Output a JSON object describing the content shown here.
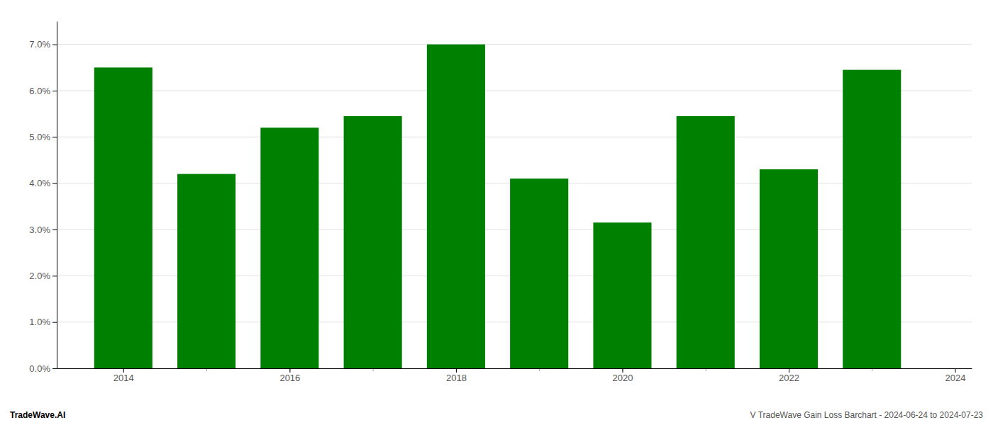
{
  "chart_data": {
    "type": "bar",
    "title": "V TradeWave Gain Loss Barchart - 2024-06-24 to 2024-07-23",
    "annotations": [
      "TradeWave.AI"
    ],
    "x": [
      2014,
      2015,
      2016,
      2017,
      2018,
      2019,
      2020,
      2021,
      2022,
      2023
    ],
    "values": [
      0.065,
      0.042,
      0.052,
      0.0545,
      0.07,
      0.041,
      0.0315,
      0.0545,
      0.043,
      0.0645
    ],
    "color": "#008000",
    "xlim": [
      2013.2,
      2024.2
    ],
    "xticks": [
      2014,
      2016,
      2018,
      2020,
      2022,
      2024
    ],
    "ylim": [
      0.0,
      0.075
    ],
    "yticks": [
      {
        "value": 0.0,
        "label": "0.0%"
      },
      {
        "value": 0.01,
        "label": "1.0%"
      },
      {
        "value": 0.02,
        "label": "2.0%"
      },
      {
        "value": 0.03,
        "label": "3.0%"
      },
      {
        "value": 0.04,
        "label": "4.0%"
      },
      {
        "value": 0.05,
        "label": "5.0%"
      },
      {
        "value": 0.06,
        "label": "6.0%"
      },
      {
        "value": 0.07,
        "label": "7.0%"
      }
    ],
    "grid": true
  }
}
